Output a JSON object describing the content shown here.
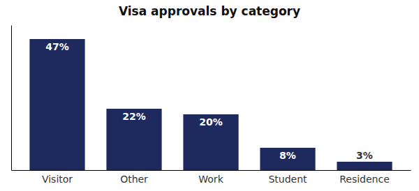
{
  "chart_data": {
    "type": "bar",
    "title": "Visa approvals by category",
    "categories": [
      "Visitor",
      "Other",
      "Work",
      "Student",
      "Residence"
    ],
    "values": [
      47,
      22,
      20,
      8,
      3
    ],
    "value_labels": [
      "47%",
      "22%",
      "20%",
      "8%",
      "3%"
    ],
    "data_labels": true,
    "color": "#1e2a5e",
    "ylim": [
      0,
      52
    ],
    "tick_labels": "x",
    "grid": false
  }
}
